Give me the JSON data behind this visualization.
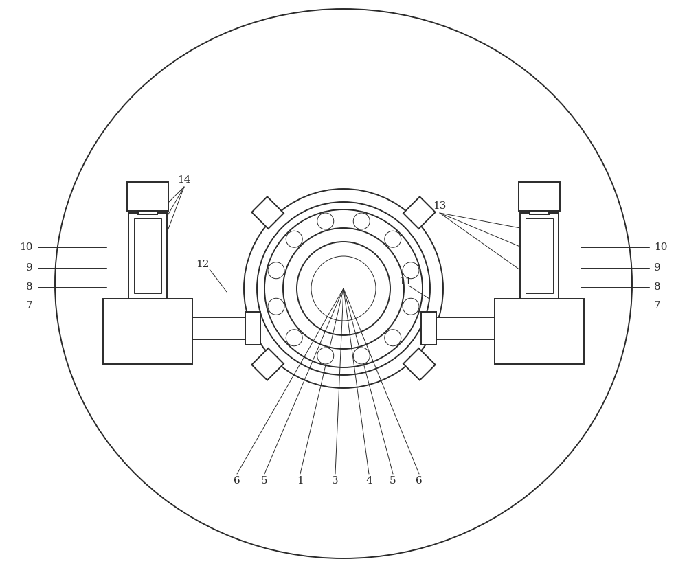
{
  "bg_color": "#ffffff",
  "line_color": "#2a2a2a",
  "lw": 1.4,
  "thin_lw": 0.7,
  "label_fontsize": 11
}
